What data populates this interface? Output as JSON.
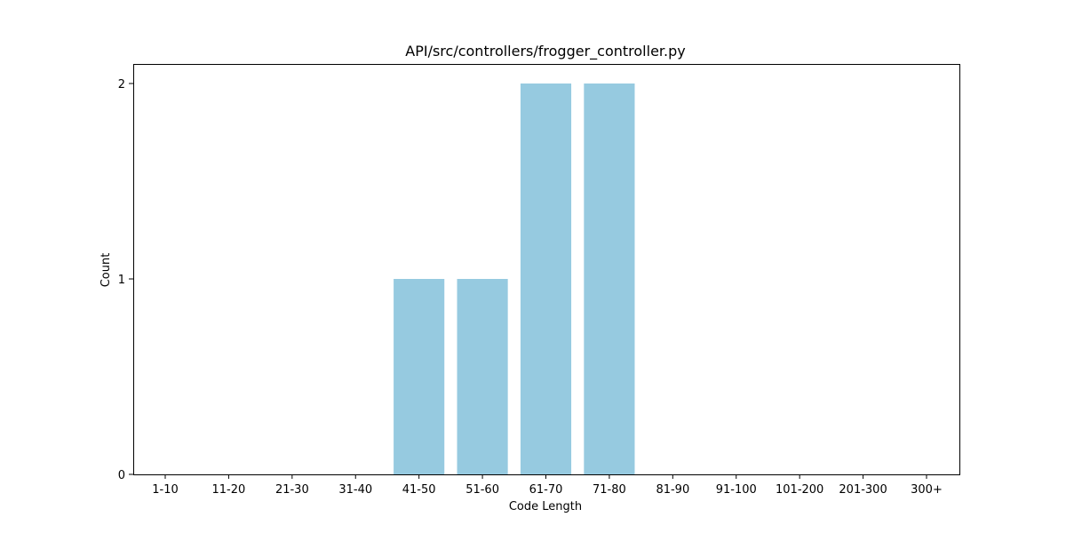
{
  "chart_data": {
    "type": "bar",
    "title": "API/src/controllers/frogger_controller.py",
    "xlabel": "Code Length",
    "ylabel": "Count",
    "categories": [
      "1-10",
      "11-20",
      "21-30",
      "31-40",
      "41-50",
      "51-60",
      "61-70",
      "71-80",
      "81-90",
      "91-100",
      "101-200",
      "201-300",
      "300+"
    ],
    "values": [
      0,
      0,
      0,
      0,
      1,
      1,
      2,
      2,
      0,
      0,
      0,
      0,
      0
    ],
    "yticks": [
      "0",
      "1",
      "2"
    ],
    "ylim": [
      0,
      2.1
    ],
    "grid": false,
    "legend": "none",
    "bar_color": "#96CAE0"
  }
}
